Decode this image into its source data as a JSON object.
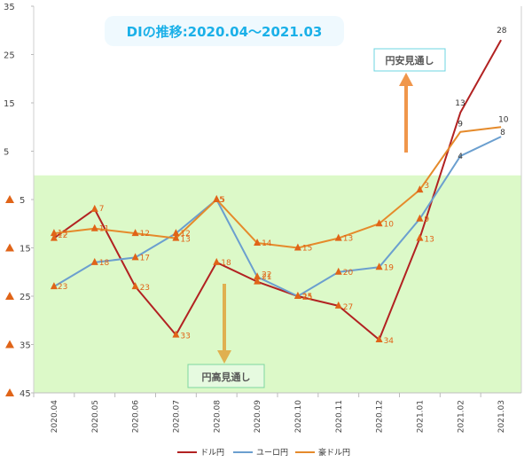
{
  "chart_data": {
    "type": "line",
    "title": "DIの推移:2020.04～2021.03",
    "categories": [
      "2020.04",
      "2020.05",
      "2020.06",
      "2020.07",
      "2020.08",
      "2020.09",
      "2020.10",
      "2020.11",
      "2020.12",
      "2021.01",
      "2021.02",
      "2021.03"
    ],
    "series": [
      {
        "name": "ドル円",
        "color": "#b22222",
        "values": [
          -13,
          -7,
          -23,
          -33,
          -18,
          -22,
          -25,
          -27,
          -34,
          -13,
          13,
          28
        ]
      },
      {
        "name": "ユーロ円",
        "color": "#6b9fcf",
        "values": [
          -23,
          -18,
          -17,
          -12,
          -5,
          -21,
          -25,
          -20,
          -19,
          -9,
          4,
          8
        ]
      },
      {
        "name": "豪ドル円",
        "color": "#e58a2b",
        "values": [
          -12,
          -11,
          -12,
          -13,
          -5,
          -14,
          -15,
          -13,
          -10,
          -3,
          9,
          10
        ]
      }
    ],
    "data_labels": {
      "ドル円": [
        "13",
        "7",
        "23",
        "33",
        "18",
        "22",
        "25",
        "27",
        "34",
        "13",
        "13",
        "28"
      ],
      "ユーロ円": [
        "23",
        "18",
        "17",
        "12",
        "5",
        "21",
        "25",
        "20",
        "19",
        "9",
        "4",
        "8"
      ],
      "豪ドル円": [
        "12",
        "11",
        "12",
        "13",
        "5",
        "14",
        "15",
        "13",
        "10",
        "3",
        "9",
        "10"
      ]
    },
    "ylim": [
      -45,
      35
    ],
    "yticks": [
      -45,
      -35,
      -25,
      -15,
      -5,
      5,
      15,
      25,
      35
    ],
    "ytick_labels": [
      "45",
      "35",
      "25",
      "15",
      "5",
      "5",
      "15",
      "25",
      "35"
    ],
    "grid": false,
    "legend": "bottom",
    "annotations": {
      "upper": "円安見通し",
      "lower": "円高見通し"
    },
    "colors": {
      "negative_region": "#dcf9c8",
      "arrow_up": "#f0964b",
      "arrow_down": "#e0b050",
      "title": "#1ab0e8",
      "triangle_marker": "#e06418",
      "upper_box_border": "#6cd4e0",
      "lower_box_border": "#7ed6a0"
    }
  }
}
